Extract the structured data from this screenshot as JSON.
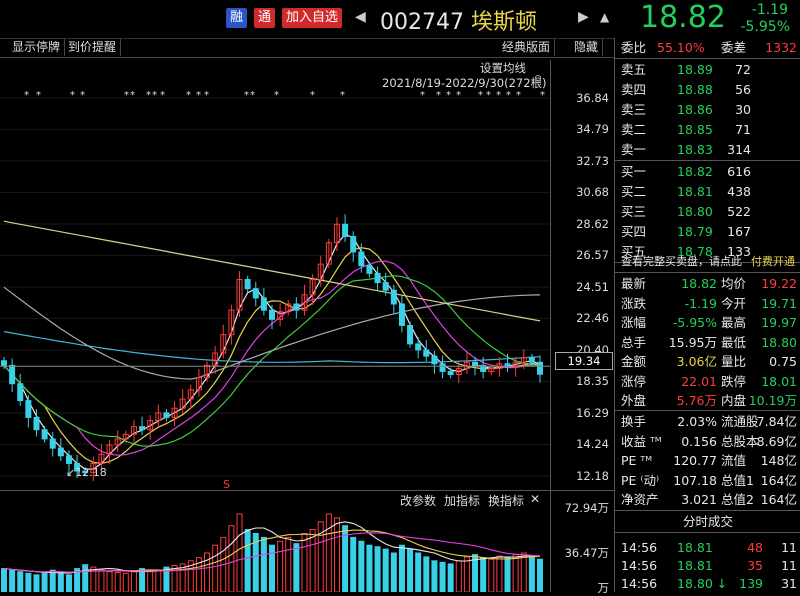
{
  "header": {
    "tag_rong": "融",
    "tag_tong": "通",
    "add_watchlist": "加入自选",
    "prev_arrow": "◀",
    "code": "002747",
    "name": "埃斯顿",
    "next_arrow": "▶",
    "bell": "▲",
    "price": "18.82",
    "change": "-1.19",
    "change_pct": "-5.95%"
  },
  "toolbar": {
    "show_suspend": "显示停牌",
    "price_alert": "到价提醒",
    "classic": "经典版面",
    "hide": "隐藏"
  },
  "chart_overlay": {
    "set_ma": "设置均线",
    "range": "2021/8/19-2022/9/30(272根)",
    "low_label": "12.18",
    "current_tag": "19.34"
  },
  "sub_toolbar": {
    "edit_params": "改参数",
    "add_indicator": "加指标",
    "swap_indicator": "换指标",
    "close": "✕"
  },
  "colors": {
    "up": "#ff3b3b",
    "down": "#22d15a",
    "ma5": "#e8e8e8",
    "ma10": "#e8d44d",
    "ma20": "#e040e0",
    "ma30": "#3ccd3c",
    "ma60": "#3fb5e0",
    "ma120": "#aaaaaa",
    "ma250": "#d8d08a"
  },
  "chart_data": {
    "type": "candlestick",
    "title": "",
    "yticks": [
      "36.84",
      "34.79",
      "32.73",
      "30.68",
      "28.62",
      "26.57",
      "24.51",
      "22.46",
      "20.40",
      "18.35",
      "16.29",
      "14.24",
      "12.18"
    ],
    "ylim": [
      12.18,
      36.84
    ],
    "volume_ticks": [
      "72.94万",
      "36.47万",
      "万"
    ],
    "closes": [
      19.4,
      18.2,
      17.1,
      16.0,
      15.2,
      14.6,
      14.0,
      13.5,
      13.0,
      12.5,
      12.4,
      13.0,
      13.6,
      14.2,
      14.6,
      14.9,
      15.4,
      15.2,
      15.8,
      16.3,
      16.0,
      16.6,
      17.2,
      17.8,
      18.6,
      19.4,
      20.2,
      21.4,
      23.0,
      25.0,
      24.4,
      23.8,
      23.0,
      22.4,
      22.9,
      23.4,
      23.0,
      24.0,
      25.0,
      26.0,
      27.4,
      28.6,
      27.8,
      26.8,
      25.9,
      25.4,
      24.8,
      24.3,
      23.4,
      22.0,
      20.8,
      20.4,
      20.0,
      19.5,
      19.0,
      18.8,
      19.2,
      19.6,
      19.4,
      19.0,
      19.2,
      19.5,
      19.3,
      19.6,
      19.9,
      19.6,
      18.82
    ],
    "volumes": [
      30,
      28,
      26,
      24,
      22,
      25,
      28,
      24,
      22,
      30,
      35,
      32,
      28,
      26,
      25,
      24,
      27,
      30,
      26,
      28,
      32,
      34,
      36,
      40,
      44,
      50,
      60,
      70,
      85,
      100,
      80,
      75,
      70,
      60,
      65,
      70,
      62,
      75,
      80,
      90,
      100,
      95,
      85,
      70,
      65,
      60,
      58,
      55,
      50,
      60,
      55,
      50,
      45,
      40,
      38,
      36,
      40,
      45,
      48,
      44,
      42,
      46,
      44,
      48,
      50,
      46,
      42
    ]
  },
  "quote": {
    "weibi_label": "委比",
    "weibi": "55.10%",
    "weicha_label": "委差",
    "weicha": "1332",
    "sells": [
      {
        "label": "卖五",
        "price": "18.89",
        "vol": "72"
      },
      {
        "label": "卖四",
        "price": "18.88",
        "vol": "56"
      },
      {
        "label": "卖三",
        "price": "18.86",
        "vol": "30"
      },
      {
        "label": "卖二",
        "price": "18.85",
        "vol": "71"
      },
      {
        "label": "卖一",
        "price": "18.83",
        "vol": "314"
      }
    ],
    "buys": [
      {
        "label": "买一",
        "price": "18.82",
        "vol": "616"
      },
      {
        "label": "买二",
        "price": "18.81",
        "vol": "438"
      },
      {
        "label": "买三",
        "price": "18.80",
        "vol": "522"
      },
      {
        "label": "买四",
        "price": "18.79",
        "vol": "167"
      },
      {
        "label": "买五",
        "price": "18.78",
        "vol": "133"
      }
    ],
    "promo": "查看完整买卖盘，请点此",
    "promo_link": "付费开通",
    "stats": [
      {
        "l1": "最新",
        "v1": "18.82",
        "c1": "grn",
        "l2": "均价",
        "v2": "19.22",
        "c2": "red"
      },
      {
        "l1": "涨跌",
        "v1": "-1.19",
        "c1": "grn",
        "l2": "今开",
        "v2": "19.71",
        "c2": "grn"
      },
      {
        "l1": "涨幅",
        "v1": "-5.95%",
        "c1": "grn",
        "l2": "最高",
        "v2": "19.97",
        "c2": "grn"
      },
      {
        "l1": "总手",
        "v1": "15.95万",
        "c1": "wht",
        "l2": "最低",
        "v2": "18.80",
        "c2": "grn"
      },
      {
        "l1": "金额",
        "v1": "3.06亿",
        "c1": "yel",
        "l2": "量比",
        "v2": "0.75",
        "c2": "wht"
      },
      {
        "l1": "涨停",
        "v1": "22.01",
        "c1": "red",
        "l2": "跌停",
        "v2": "18.01",
        "c2": "grn"
      },
      {
        "l1": "外盘",
        "v1": "5.76万",
        "c1": "red",
        "l2": "内盘",
        "v2": "10.19万",
        "c2": "grn"
      }
    ],
    "fund": [
      {
        "l1": "换手",
        "v1": "2.03%",
        "l2": "流通股",
        "v2": "7.84亿"
      },
      {
        "l1": "收益 ᵀᴹ",
        "v1": "0.156",
        "l2": "总股本",
        "v2": "8.69亿"
      },
      {
        "l1": "PE ᵀᴹ",
        "v1": "120.77",
        "l2": "流值",
        "v2": "148亿"
      },
      {
        "l1": "PE ⁽动⁾",
        "v1": "107.18",
        "l2": "总值1",
        "v2": "164亿"
      },
      {
        "l1": "净资产",
        "v1": "3.021",
        "l2": "总值2",
        "v2": "164亿"
      }
    ],
    "ticks_title": "分时成交",
    "ticks": [
      {
        "time": "14:56",
        "price": "18.81",
        "vol": "48",
        "n": "11",
        "vc": "red"
      },
      {
        "time": "14:56",
        "price": "18.81",
        "vol": "35",
        "n": "11",
        "vc": "red"
      },
      {
        "time": "14:56",
        "price": "18.80 ↓",
        "vol": "139",
        "n": "31",
        "vc": "grn"
      }
    ]
  }
}
